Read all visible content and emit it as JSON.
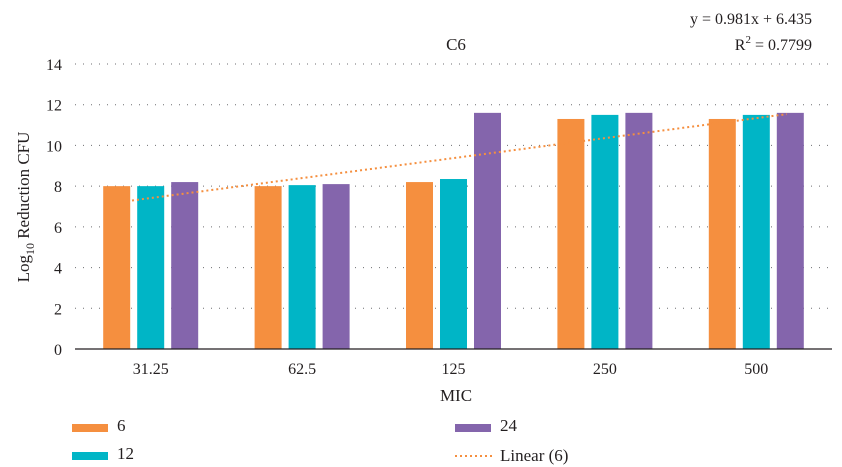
{
  "chart_data": {
    "type": "bar",
    "title": "C6",
    "xlabel": "MIC",
    "ylabel": "Log10 Reduction CFU",
    "ylabel_parts": {
      "prefix": "Log",
      "subscript": "10",
      "suffix": " Reduction CFU"
    },
    "categories": [
      "31.25",
      "62.5",
      "125",
      "250",
      "500"
    ],
    "ylim": [
      0,
      14
    ],
    "yticks": [
      0,
      2,
      4,
      6,
      8,
      10,
      12,
      14
    ],
    "grid": "horizontal dotted",
    "legend_position": "bottom",
    "series": [
      {
        "name": "6",
        "color": "#f58f3f",
        "values": [
          8.0,
          8.0,
          8.2,
          11.3,
          11.3
        ]
      },
      {
        "name": "12",
        "color": "#00b5c6",
        "values": [
          8.0,
          8.05,
          8.35,
          11.5,
          11.5
        ]
      },
      {
        "name": "24",
        "color": "#8465ac",
        "values": [
          8.2,
          8.1,
          11.6,
          11.6,
          11.6
        ]
      }
    ],
    "trendline": {
      "name": "Linear (6)",
      "series": "6",
      "color": "#f58f3f",
      "slope": 0.981,
      "intercept": 6.435,
      "equation": "y = 0.981x + 6.435",
      "r2_prefix": "R",
      "r2_sup": "2",
      "r2_rest": " = 0.7799"
    }
  }
}
